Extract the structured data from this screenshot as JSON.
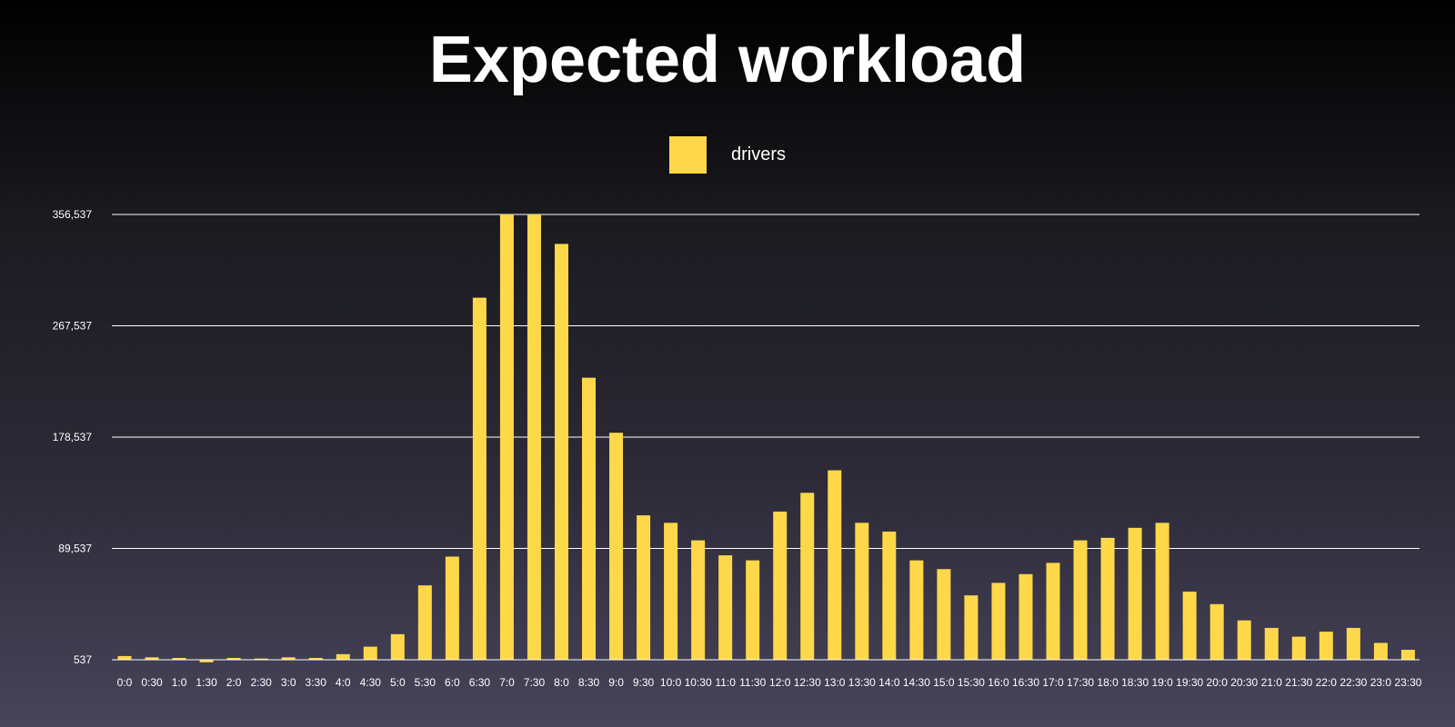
{
  "colors": {
    "bar": "#ffd84a",
    "grid": "#ffffff",
    "text": "#ffffff"
  },
  "chart_data": {
    "type": "bar",
    "title": "Expected workload",
    "xlabel": "",
    "ylabel": "",
    "legend_position": "top-center",
    "grid": true,
    "categories": [
      "0:0",
      "0:30",
      "1:0",
      "1:30",
      "2:0",
      "2:30",
      "3:0",
      "3:30",
      "4:0",
      "4:30",
      "5:0",
      "5:30",
      "6:0",
      "6:30",
      "7:0",
      "7:30",
      "8:0",
      "8:30",
      "9:0",
      "9:30",
      "10:0",
      "10:30",
      "11:0",
      "11:30",
      "12:0",
      "12:30",
      "13:0",
      "13:30",
      "14:0",
      "14:30",
      "15:0",
      "15:30",
      "16:0",
      "16:30",
      "17:0",
      "17:30",
      "18:0",
      "18:30",
      "19:0",
      "19:30",
      "20:0",
      "20:30",
      "21:0",
      "21:30",
      "22:0",
      "22:30",
      "23:0",
      "23:30"
    ],
    "series": [
      {
        "name": "drivers",
        "values": [
          3500,
          2500,
          2000,
          -1500,
          2000,
          1500,
          2500,
          2000,
          5000,
          11000,
          21000,
          60000,
          83000,
          290000,
          356537,
          356537,
          333000,
          226000,
          182000,
          116000,
          110000,
          96000,
          84000,
          80000,
          119000,
          134000,
          152000,
          110000,
          103000,
          80000,
          73000,
          52000,
          62000,
          69000,
          78000,
          96000,
          98000,
          106000,
          110000,
          55000,
          45000,
          32000,
          26000,
          19000,
          23000,
          26000,
          14000,
          8500
        ]
      }
    ],
    "yticks": [
      "537",
      "89,537",
      "178,537",
      "267,537",
      "356,537"
    ],
    "ytick_values": [
      537,
      89537,
      178537,
      267537,
      356537
    ],
    "ylim": [
      537,
      356537
    ]
  }
}
